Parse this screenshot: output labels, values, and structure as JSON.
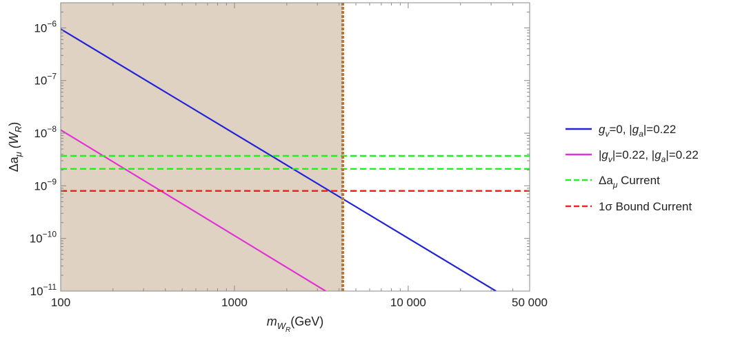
{
  "chart_data": {
    "type": "line",
    "title": "",
    "xscale": "log",
    "yscale": "log",
    "xlim": [
      100,
      50000
    ],
    "ylim": [
      1e-11,
      3e-06
    ],
    "x_ticks": [
      {
        "value": 100,
        "label": "100"
      },
      {
        "value": 1000,
        "label": "1000"
      },
      {
        "value": 10000,
        "label": "10 000"
      },
      {
        "value": 50000,
        "label": "50 000"
      }
    ],
    "y_ticks": [
      {
        "value": 1e-11,
        "mantissa": "10",
        "exp": "−11"
      },
      {
        "value": 1e-10,
        "mantissa": "10",
        "exp": "−10"
      },
      {
        "value": 1e-09,
        "mantissa": "10",
        "exp": "−9"
      },
      {
        "value": 1e-08,
        "mantissa": "10",
        "exp": "−8"
      },
      {
        "value": 1e-07,
        "mantissa": "10",
        "exp": "−7"
      },
      {
        "value": 1e-06,
        "mantissa": "10",
        "exp": "−6"
      }
    ],
    "xlabel": {
      "main": "m",
      "sub1": "W",
      "sub2": "R",
      "unit": "(GeV)"
    },
    "ylabel": {
      "main": "Δa",
      "sub": "μ",
      "rest_open": " (W",
      "sub2": "R",
      "rest_close": ")"
    },
    "shaded_region": {
      "x": [
        100,
        4200
      ],
      "color": "#e0d2c2"
    },
    "vertical_bound": {
      "x": 4200,
      "color": "#b5763b"
    },
    "series": [
      {
        "legend": {
          "a": "g",
          "a_sub": "v",
          "b": "=0, |g",
          "b_sub": "a",
          "c": "|=0.22"
        },
        "style": "solid",
        "color": "#2323d6",
        "x": [
          100,
          32000
        ],
        "y": [
          9.5e-07,
          1e-11
        ]
      },
      {
        "legend": {
          "a": "|g",
          "a_sub": "v",
          "b": "|=0.22, |g",
          "b_sub": "a",
          "c": "|=0.22"
        },
        "style": "solid",
        "color": "#e033d4",
        "x": [
          100,
          3350
        ],
        "y": [
          1.15e-08,
          1e-11
        ]
      },
      {
        "legend": {
          "a": "Δa",
          "a_sub": "μ",
          "b": " Current"
        },
        "style": "dashed",
        "color": "#22ee22",
        "band": [
          2.1e-09,
          3.7e-09
        ]
      },
      {
        "legend": {
          "a": "1σ Bound Current"
        },
        "style": "dashed",
        "color": "#ee2222",
        "y_const": 8e-10
      }
    ],
    "legend_position": "right",
    "grid": false
  }
}
